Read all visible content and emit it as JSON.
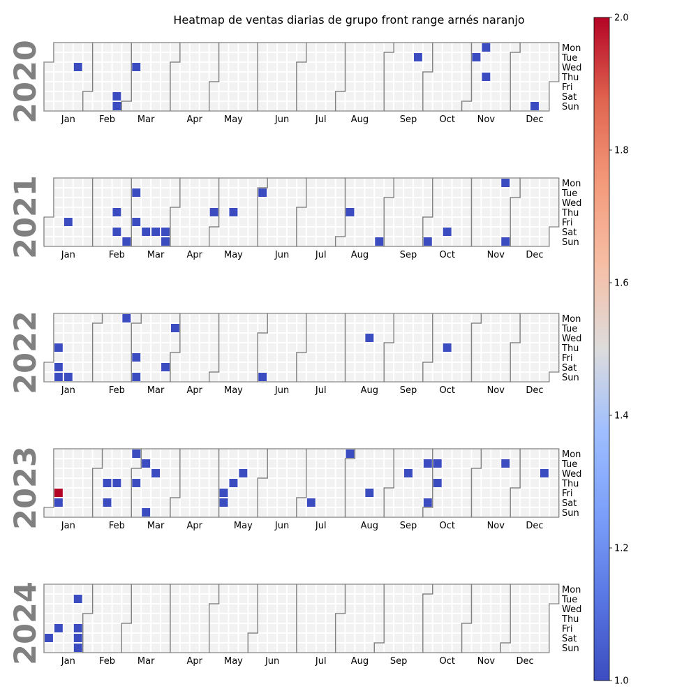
{
  "chart_data": {
    "type": "heatmap",
    "title": "Heatmap de ventas diarias de grupo front range arnés naranjo",
    "years": [
      "2020",
      "2021",
      "2022",
      "2023",
      "2024"
    ],
    "month_labels": [
      "Jan",
      "Feb",
      "Mar",
      "Apr",
      "May",
      "Jun",
      "Jul",
      "Aug",
      "Sep",
      "Oct",
      "Nov",
      "Dec"
    ],
    "day_labels": [
      "Mon",
      "Tue",
      "Wed",
      "Thu",
      "Fri",
      "Sat",
      "Sun"
    ],
    "colorbar": {
      "vmin": 1.0,
      "vmax": 2.0,
      "ticks": [
        "1.0",
        "1.2",
        "1.4",
        "1.6",
        "1.8",
        "2.0"
      ],
      "colormap": "coolwarm"
    },
    "colors": {
      "low": "#3b4cc0",
      "high": "#b40426",
      "empty": "#f2f2f2",
      "outline": "#808080"
    },
    "sales": [
      {
        "date": "2020-01-22",
        "value": 1
      },
      {
        "date": "2020-02-22",
        "value": 1
      },
      {
        "date": "2020-02-23",
        "value": 1
      },
      {
        "date": "2020-03-04",
        "value": 1
      },
      {
        "date": "2020-09-22",
        "value": 1
      },
      {
        "date": "2020-11-03",
        "value": 1
      },
      {
        "date": "2020-11-09",
        "value": 1
      },
      {
        "date": "2020-11-12",
        "value": 1
      },
      {
        "date": "2020-12-20",
        "value": 1
      },
      {
        "date": "2021-01-15",
        "value": 1
      },
      {
        "date": "2021-02-18",
        "value": 1
      },
      {
        "date": "2021-02-20",
        "value": 1
      },
      {
        "date": "2021-02-28",
        "value": 1
      },
      {
        "date": "2021-03-02",
        "value": 1
      },
      {
        "date": "2021-03-05",
        "value": 1
      },
      {
        "date": "2021-03-13",
        "value": 1
      },
      {
        "date": "2021-03-20",
        "value": 1
      },
      {
        "date": "2021-03-27",
        "value": 1
      },
      {
        "date": "2021-03-28",
        "value": 1
      },
      {
        "date": "2021-04-29",
        "value": 1
      },
      {
        "date": "2021-05-13",
        "value": 1
      },
      {
        "date": "2021-06-01",
        "value": 1
      },
      {
        "date": "2021-08-05",
        "value": 1
      },
      {
        "date": "2021-08-29",
        "value": 1
      },
      {
        "date": "2021-10-03",
        "value": 1
      },
      {
        "date": "2021-10-16",
        "value": 1
      },
      {
        "date": "2021-11-22",
        "value": 1
      },
      {
        "date": "2021-11-28",
        "value": 1
      },
      {
        "date": "2022-01-06",
        "value": 1
      },
      {
        "date": "2022-01-08",
        "value": 1
      },
      {
        "date": "2022-01-09",
        "value": 1
      },
      {
        "date": "2022-01-16",
        "value": 1
      },
      {
        "date": "2022-02-21",
        "value": 1
      },
      {
        "date": "2022-03-04",
        "value": 1
      },
      {
        "date": "2022-03-06",
        "value": 1
      },
      {
        "date": "2022-03-26",
        "value": 1
      },
      {
        "date": "2022-03-29",
        "value": 1
      },
      {
        "date": "2022-06-05",
        "value": 1
      },
      {
        "date": "2022-08-17",
        "value": 1
      },
      {
        "date": "2022-10-13",
        "value": 1
      },
      {
        "date": "2023-01-06",
        "value": 2
      },
      {
        "date": "2023-01-07",
        "value": 1
      },
      {
        "date": "2023-02-09",
        "value": 1
      },
      {
        "date": "2023-02-11",
        "value": 1
      },
      {
        "date": "2023-02-16",
        "value": 1
      },
      {
        "date": "2023-02-27",
        "value": 1
      },
      {
        "date": "2023-03-02",
        "value": 1
      },
      {
        "date": "2023-03-07",
        "value": 1
      },
      {
        "date": "2023-03-12",
        "value": 1
      },
      {
        "date": "2023-03-15",
        "value": 1
      },
      {
        "date": "2023-05-05",
        "value": 1
      },
      {
        "date": "2023-05-06",
        "value": 1
      },
      {
        "date": "2023-05-11",
        "value": 1
      },
      {
        "date": "2023-05-17",
        "value": 1
      },
      {
        "date": "2023-07-08",
        "value": 1
      },
      {
        "date": "2023-07-31",
        "value": 1
      },
      {
        "date": "2023-08-18",
        "value": 1
      },
      {
        "date": "2023-09-13",
        "value": 1
      },
      {
        "date": "2023-09-26",
        "value": 1
      },
      {
        "date": "2023-09-30",
        "value": 1
      },
      {
        "date": "2023-10-03",
        "value": 1
      },
      {
        "date": "2023-10-05",
        "value": 1
      },
      {
        "date": "2023-11-21",
        "value": 1
      },
      {
        "date": "2023-12-20",
        "value": 1
      },
      {
        "date": "2024-01-06",
        "value": 1
      },
      {
        "date": "2024-01-12",
        "value": 1
      },
      {
        "date": "2024-01-23",
        "value": 1
      },
      {
        "date": "2024-01-26",
        "value": 1
      },
      {
        "date": "2024-01-27",
        "value": 1
      },
      {
        "date": "2024-01-28",
        "value": 1
      }
    ]
  }
}
